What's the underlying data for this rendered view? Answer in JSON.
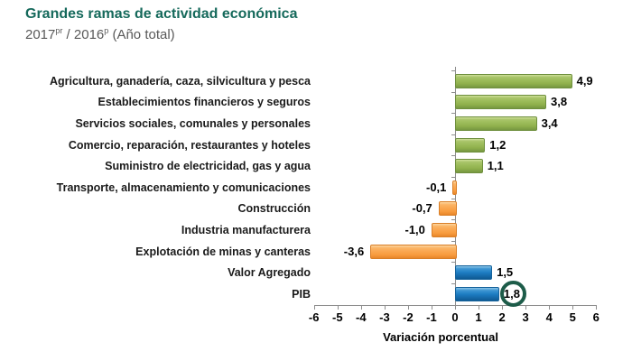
{
  "header": {
    "title": "Grandes ramas de actividad económica",
    "subtitle": {
      "year1": "2017",
      "sup1": "pr",
      "sep": " / ",
      "year2": "2016",
      "sup2": "p",
      "rest": " (Año total)"
    }
  },
  "chart_data": {
    "type": "bar",
    "orientation": "horizontal",
    "title": "Grandes ramas de actividad económica",
    "subtitle": "2017pr / 2016p (Año total)",
    "xlabel": "Variación porcentual",
    "ylabel": "",
    "xlim": [
      -6,
      6
    ],
    "grid": false,
    "legend": "none",
    "categories": [
      "Agricultura, ganadería, caza, silvicultura y pesca",
      "Establecimientos financieros y seguros",
      "Servicios sociales, comunales y personales",
      "Comercio, reparación, restaurantes y hoteles",
      "Suministro de electricidad, gas y agua",
      "Transporte, almacenamiento y comunicaciones",
      "Construcción",
      "Industria manufacturera",
      "Explotación de minas y canteras",
      "Valor Agregado",
      "PIB"
    ],
    "values": [
      4.9,
      3.8,
      3.4,
      1.2,
      1.1,
      -0.1,
      -0.7,
      -1.0,
      -3.6,
      1.5,
      1.8
    ],
    "value_labels": [
      "4,9",
      "3,8",
      "3,4",
      "1,2",
      "1,1",
      "-0,1",
      "-0,7",
      "-1,0",
      "-3,6",
      "1,5",
      "1,8"
    ],
    "bar_colors": [
      "green",
      "green",
      "green",
      "green",
      "green",
      "orange",
      "orange",
      "orange",
      "orange",
      "blue",
      "blue"
    ],
    "highlight_index": 10,
    "x_ticks": [
      "-6",
      "-5",
      "-4",
      "-3",
      "-2",
      "-1",
      "0",
      "1",
      "2",
      "3",
      "4",
      "5",
      "6"
    ],
    "colors": {
      "positive_green": "#9BBB59",
      "negative_orange": "#FAA54E",
      "aggregate_blue": "#1D7DC2",
      "highlight_ring": "#1D5C49",
      "title_text": "#15695B",
      "subtitle_text": "#595959",
      "axis_gray": "#8E8E8E",
      "label_text": "#000000"
    }
  }
}
